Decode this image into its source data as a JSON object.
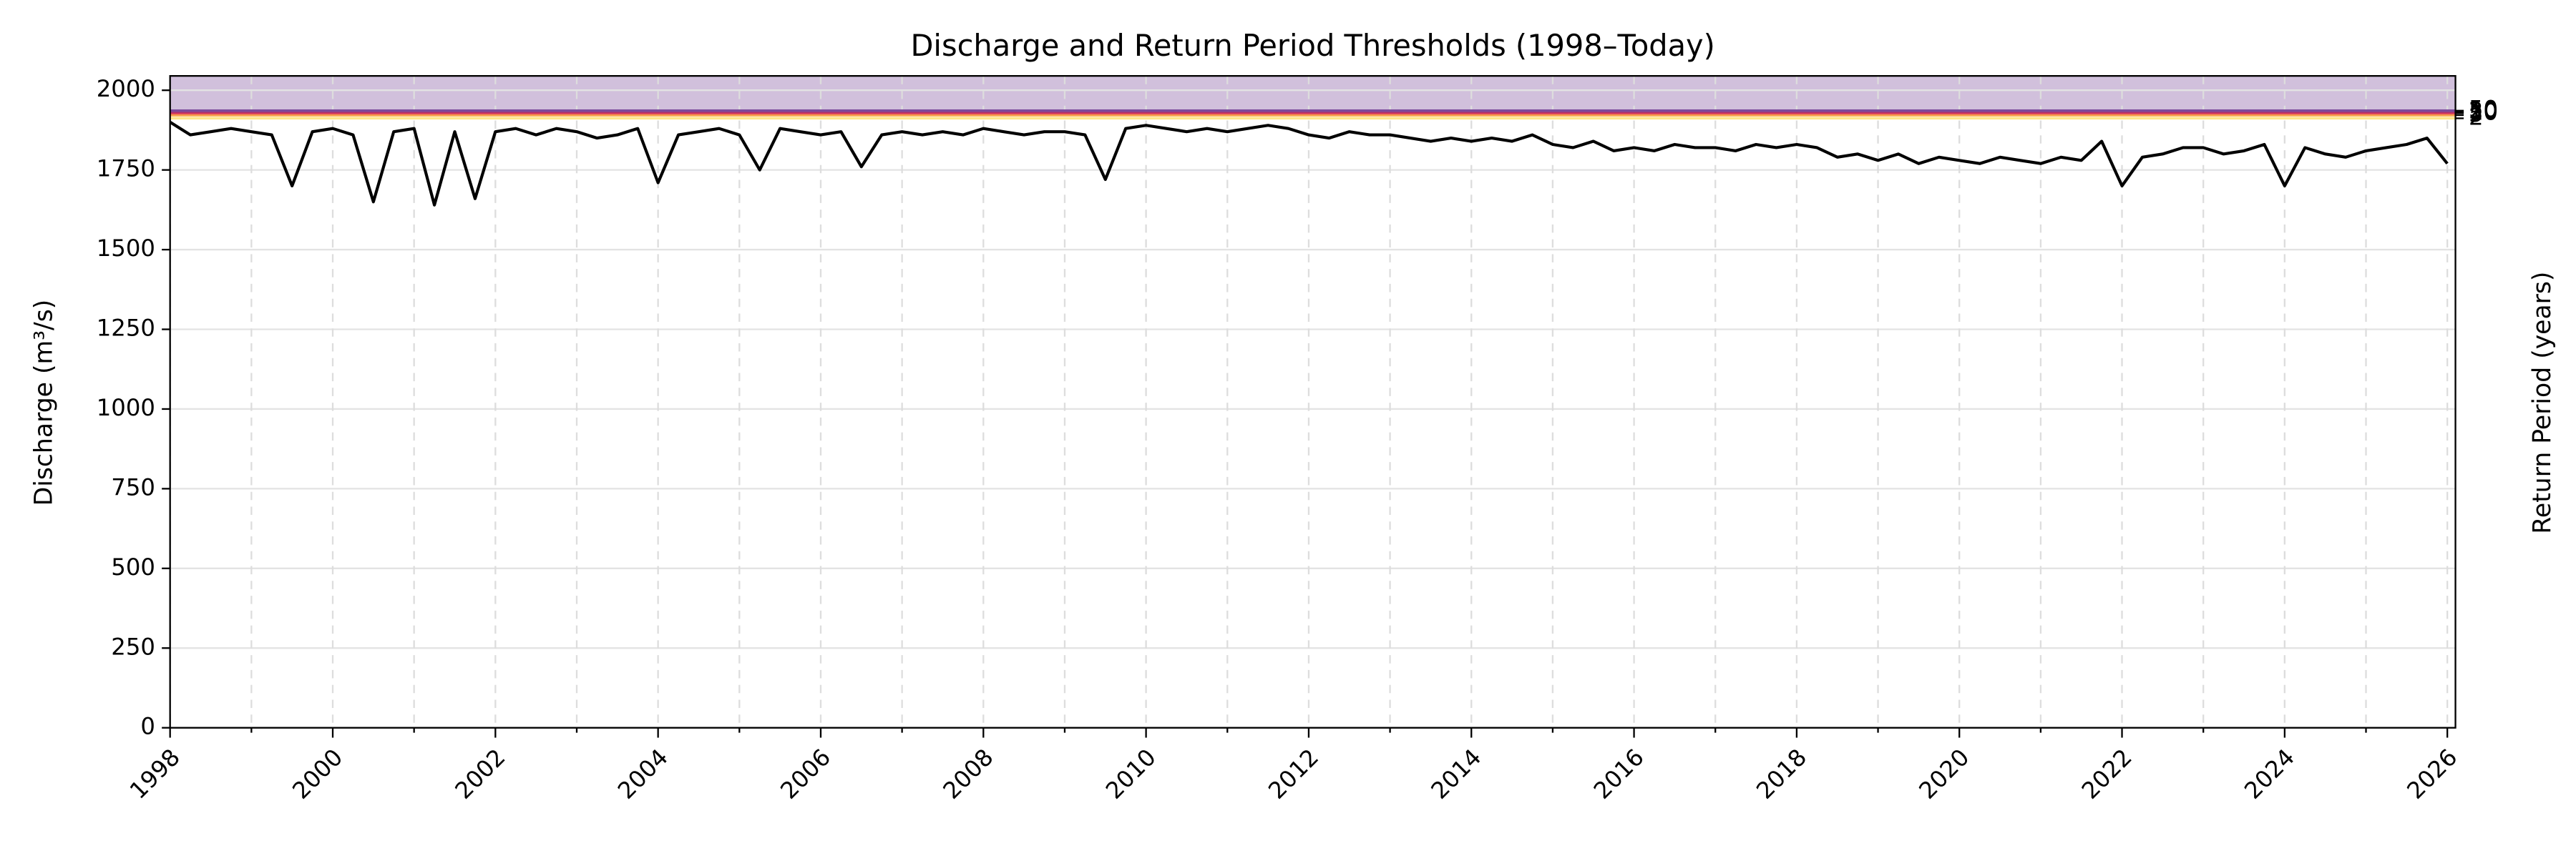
{
  "chart_data": {
    "type": "line",
    "title": "Discharge and Return Period Thresholds (1998–Today)",
    "y_label": "Discharge (m³/s)",
    "y2_label": "Return Period (years)",
    "xlim": [
      1998,
      2026.1
    ],
    "ylim": [
      0,
      2045
    ],
    "xticks": [
      1998,
      2000,
      2002,
      2004,
      2006,
      2008,
      2010,
      2012,
      2014,
      2016,
      2018,
      2020,
      2022,
      2024,
      2026
    ],
    "xminorticks": [
      1999,
      2001,
      2003,
      2005,
      2007,
      2009,
      2011,
      2013,
      2015,
      2017,
      2019,
      2021,
      2023,
      2025
    ],
    "yticks": [
      0,
      250,
      500,
      750,
      1000,
      1250,
      1500,
      1750,
      2000
    ],
    "grid": true,
    "thresholds": [
      {
        "return_period": 2,
        "value": 1912,
        "color": "#fde68a"
      },
      {
        "return_period": 5,
        "value": 1922,
        "color": "#f6a04d"
      },
      {
        "return_period": 10,
        "value": 1928,
        "color": "#e0455a"
      },
      {
        "return_period": 20,
        "value": 1932,
        "color": "#b0306a"
      },
      {
        "return_period": 50,
        "value": 1936,
        "color": "#7b4a9c"
      }
    ],
    "x": [
      1998,
      1998.25,
      1998.5,
      1998.75,
      1999,
      1999.25,
      1999.5,
      1999.75,
      2000,
      2000.25,
      2000.5,
      2000.75,
      2001,
      2001.25,
      2001.5,
      2001.75,
      2002,
      2002.25,
      2002.5,
      2002.75,
      2003,
      2003.25,
      2003.5,
      2003.75,
      2004,
      2004.25,
      2004.5,
      2004.75,
      2005,
      2005.25,
      2005.5,
      2005.75,
      2006,
      2006.25,
      2006.5,
      2006.75,
      2007,
      2007.25,
      2007.5,
      2007.75,
      2008,
      2008.25,
      2008.5,
      2008.75,
      2009,
      2009.25,
      2009.5,
      2009.75,
      2010,
      2010.25,
      2010.5,
      2010.75,
      2011,
      2011.25,
      2011.5,
      2011.75,
      2012,
      2012.25,
      2012.5,
      2012.75,
      2013,
      2013.25,
      2013.5,
      2013.75,
      2014,
      2014.25,
      2014.5,
      2014.75,
      2015,
      2015.25,
      2015.5,
      2015.75,
      2016,
      2016.25,
      2016.5,
      2016.75,
      2017,
      2017.25,
      2017.5,
      2017.75,
      2018,
      2018.25,
      2018.5,
      2018.75,
      2019,
      2019.25,
      2019.5,
      2019.75,
      2020,
      2020.25,
      2020.5,
      2020.75,
      2021,
      2021.25,
      2021.5,
      2021.75,
      2022,
      2022.25,
      2022.5,
      2022.75,
      2023,
      2023.25,
      2023.5,
      2023.75,
      2024,
      2024.25,
      2024.5,
      2024.75,
      2025,
      2025.25,
      2025.5,
      2025.75,
      2026
    ],
    "series": [
      {
        "name": "Discharge",
        "color": "#000000",
        "values": [
          1900,
          1860,
          1870,
          1880,
          1870,
          1860,
          1700,
          1870,
          1880,
          1860,
          1650,
          1870,
          1880,
          1640,
          1870,
          1660,
          1870,
          1880,
          1860,
          1880,
          1870,
          1850,
          1860,
          1880,
          1710,
          1860,
          1870,
          1880,
          1860,
          1750,
          1880,
          1870,
          1860,
          1870,
          1760,
          1860,
          1870,
          1860,
          1870,
          1860,
          1880,
          1870,
          1860,
          1870,
          1870,
          1860,
          1720,
          1880,
          1890,
          1880,
          1870,
          1880,
          1870,
          1880,
          1890,
          1880,
          1860,
          1850,
          1870,
          1860,
          1860,
          1850,
          1840,
          1850,
          1840,
          1850,
          1840,
          1860,
          1830,
          1820,
          1840,
          1810,
          1820,
          1810,
          1830,
          1820,
          1820,
          1810,
          1830,
          1820,
          1830,
          1820,
          1790,
          1800,
          1780,
          1800,
          1770,
          1790,
          1780,
          1770,
          1790,
          1780,
          1770,
          1790,
          1780,
          1840,
          1700,
          1790,
          1800,
          1820,
          1820,
          1800,
          1810,
          1830,
          1700,
          1820,
          1800,
          1790,
          1810,
          1820,
          1830,
          1850,
          1770
        ]
      }
    ]
  }
}
